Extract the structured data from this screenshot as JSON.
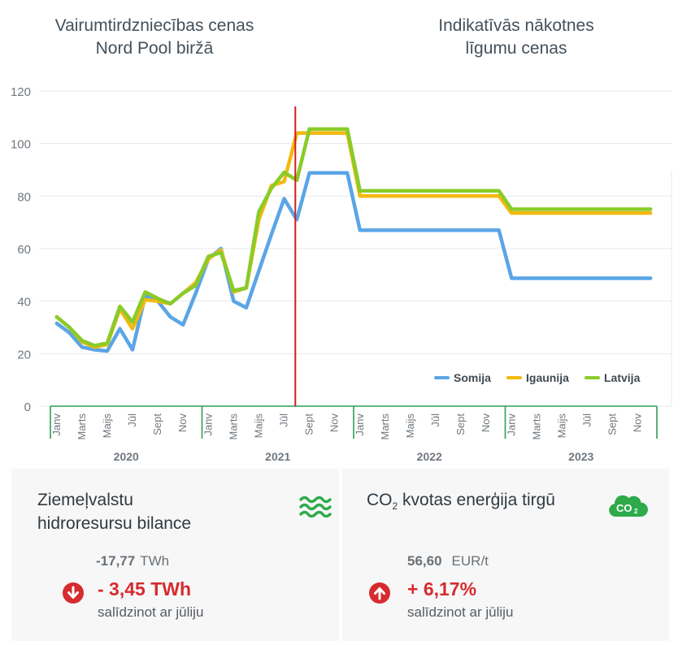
{
  "headings": {
    "left_line1": "Vairumtirdzniecības cenas",
    "left_line2": "Nord Pool biržā",
    "right_line1": "Indikatīvās nākotnes",
    "right_line2": "līgumu cenas"
  },
  "chart_data": {
    "type": "line",
    "ylim": [
      0,
      120
    ],
    "yticks": [
      "0",
      "20",
      "40",
      "60",
      "80",
      "100",
      "120"
    ],
    "grid": true,
    "legend_position": "bottom-right",
    "divider_between": [
      "Jūl 2021",
      "Aug 2021"
    ],
    "divider_color": "#d31d1d",
    "x": [
      "Jan 2020",
      "Feb 2020",
      "Mar 2020",
      "Apr 2020",
      "May 2020",
      "Jun 2020",
      "Jul 2020",
      "Aug 2020",
      "Sep 2020",
      "Oct 2020",
      "Nov 2020",
      "Dec 2020",
      "Jan 2021",
      "Feb 2021",
      "Mar 2021",
      "Apr 2021",
      "May 2021",
      "Jun 2021",
      "Jul 2021",
      "Aug 2021",
      "Sep 2021",
      "Oct 2021",
      "Nov 2021",
      "Dec 2021",
      "Jan 2022",
      "Feb 2022",
      "Mar 2022",
      "Apr 2022",
      "May 2022",
      "Jun 2022",
      "Jul 2022",
      "Aug 2022",
      "Sep 2022",
      "Oct 2022",
      "Nov 2022",
      "Dec 2022",
      "Jan 2023",
      "Feb 2023",
      "Mar 2023",
      "Apr 2023",
      "May 2023",
      "Jun 2023",
      "Jul 2023",
      "Aug 2023",
      "Sep 2023",
      "Oct 2023",
      "Nov 2023",
      "Dec 2023"
    ],
    "tick_labels": [
      "Janv",
      "",
      "Marts",
      "",
      "Maijs",
      "",
      "Jūl",
      "",
      "Sept",
      "",
      "Nov",
      "",
      "Janv",
      "",
      "Marts",
      "",
      "Maijs",
      "",
      "Jūl",
      "",
      "Sept",
      "",
      "Nov",
      "",
      "Janv",
      "",
      "Marts",
      "",
      "Maijs",
      "",
      "Jūl",
      "",
      "Sept",
      "",
      "Nov",
      "",
      "Janv",
      "",
      "Marts",
      "",
      "Maijs",
      "",
      "Jūl",
      "",
      "Sept",
      "",
      "Nov",
      ""
    ],
    "year_labels": [
      "2020",
      "2021",
      "2022",
      "2023"
    ],
    "series": [
      {
        "name": "Somija",
        "color": "#5aa5e6",
        "values": [
          31.5,
          28,
          22.5,
          21.5,
          21,
          29.5,
          21.5,
          42,
          40,
          34,
          31,
          43,
          56,
          60,
          40,
          37.5,
          51.5,
          65.5,
          79,
          71,
          88.8,
          88.8,
          88.8,
          88.8,
          67,
          67,
          67,
          67,
          67,
          67,
          67,
          67,
          67,
          67,
          67,
          67,
          48.7,
          48.7,
          48.7,
          48.7,
          48.7,
          48.7,
          48.7,
          48.7,
          48.7,
          48.7,
          48.7,
          48.7
        ]
      },
      {
        "name": "Igaunija",
        "color": "#f2b90f",
        "values": [
          34,
          30,
          24.5,
          22.5,
          23.5,
          37,
          29.5,
          40.5,
          40,
          39,
          43,
          47,
          56,
          59.5,
          43.5,
          45,
          71,
          84,
          85.5,
          104,
          104,
          104,
          104,
          104,
          80,
          80,
          80,
          80,
          80,
          80,
          80,
          80,
          80,
          80,
          80,
          80,
          73.5,
          73.5,
          73.5,
          73.5,
          73.5,
          73.5,
          73.5,
          73.5,
          73.5,
          73.5,
          73.5,
          73.5
        ]
      },
      {
        "name": "Latvija",
        "color": "#8acb2a",
        "values": [
          34,
          30,
          25,
          23,
          24,
          38,
          32,
          43.5,
          41,
          39,
          43,
          46,
          57,
          58.5,
          44,
          45,
          74,
          83,
          89,
          86,
          105.5,
          105.5,
          105.5,
          105.5,
          82,
          82,
          82,
          82,
          82,
          82,
          82,
          82,
          82,
          82,
          82,
          82,
          75,
          75,
          75,
          75,
          75,
          75,
          75,
          75,
          75,
          75,
          75,
          75
        ]
      }
    ]
  },
  "cards": {
    "hydro": {
      "title_line1": "Ziemeļvalstu",
      "title_line2": "hidroresursu bilance",
      "icon": "water-waves-icon",
      "icon_color": "#2eaa4a",
      "previous_value": "-17,77",
      "previous_unit": "TWh",
      "delta": "- 3,45 TWh",
      "delta_direction": "down",
      "compare_text": "salīdzinot ar jūliju"
    },
    "co2": {
      "title_prefix": "CO",
      "title_sub": "2",
      "title_suffix": " kvotas enerģija tirgū",
      "icon": "co2-cloud-icon",
      "icon_text": "CO",
      "icon_sub": "2",
      "icon_color": "#2eaa4a",
      "previous_value": "56,60",
      "previous_unit": "EUR/t",
      "delta": "+ 6,17%",
      "delta_direction": "up",
      "compare_text": "salīdzinot ar jūliju"
    }
  },
  "colors": {
    "accent_green": "#2eaa4a",
    "negative_red": "#d62b2f",
    "axis_green": "#2e9e55"
  }
}
